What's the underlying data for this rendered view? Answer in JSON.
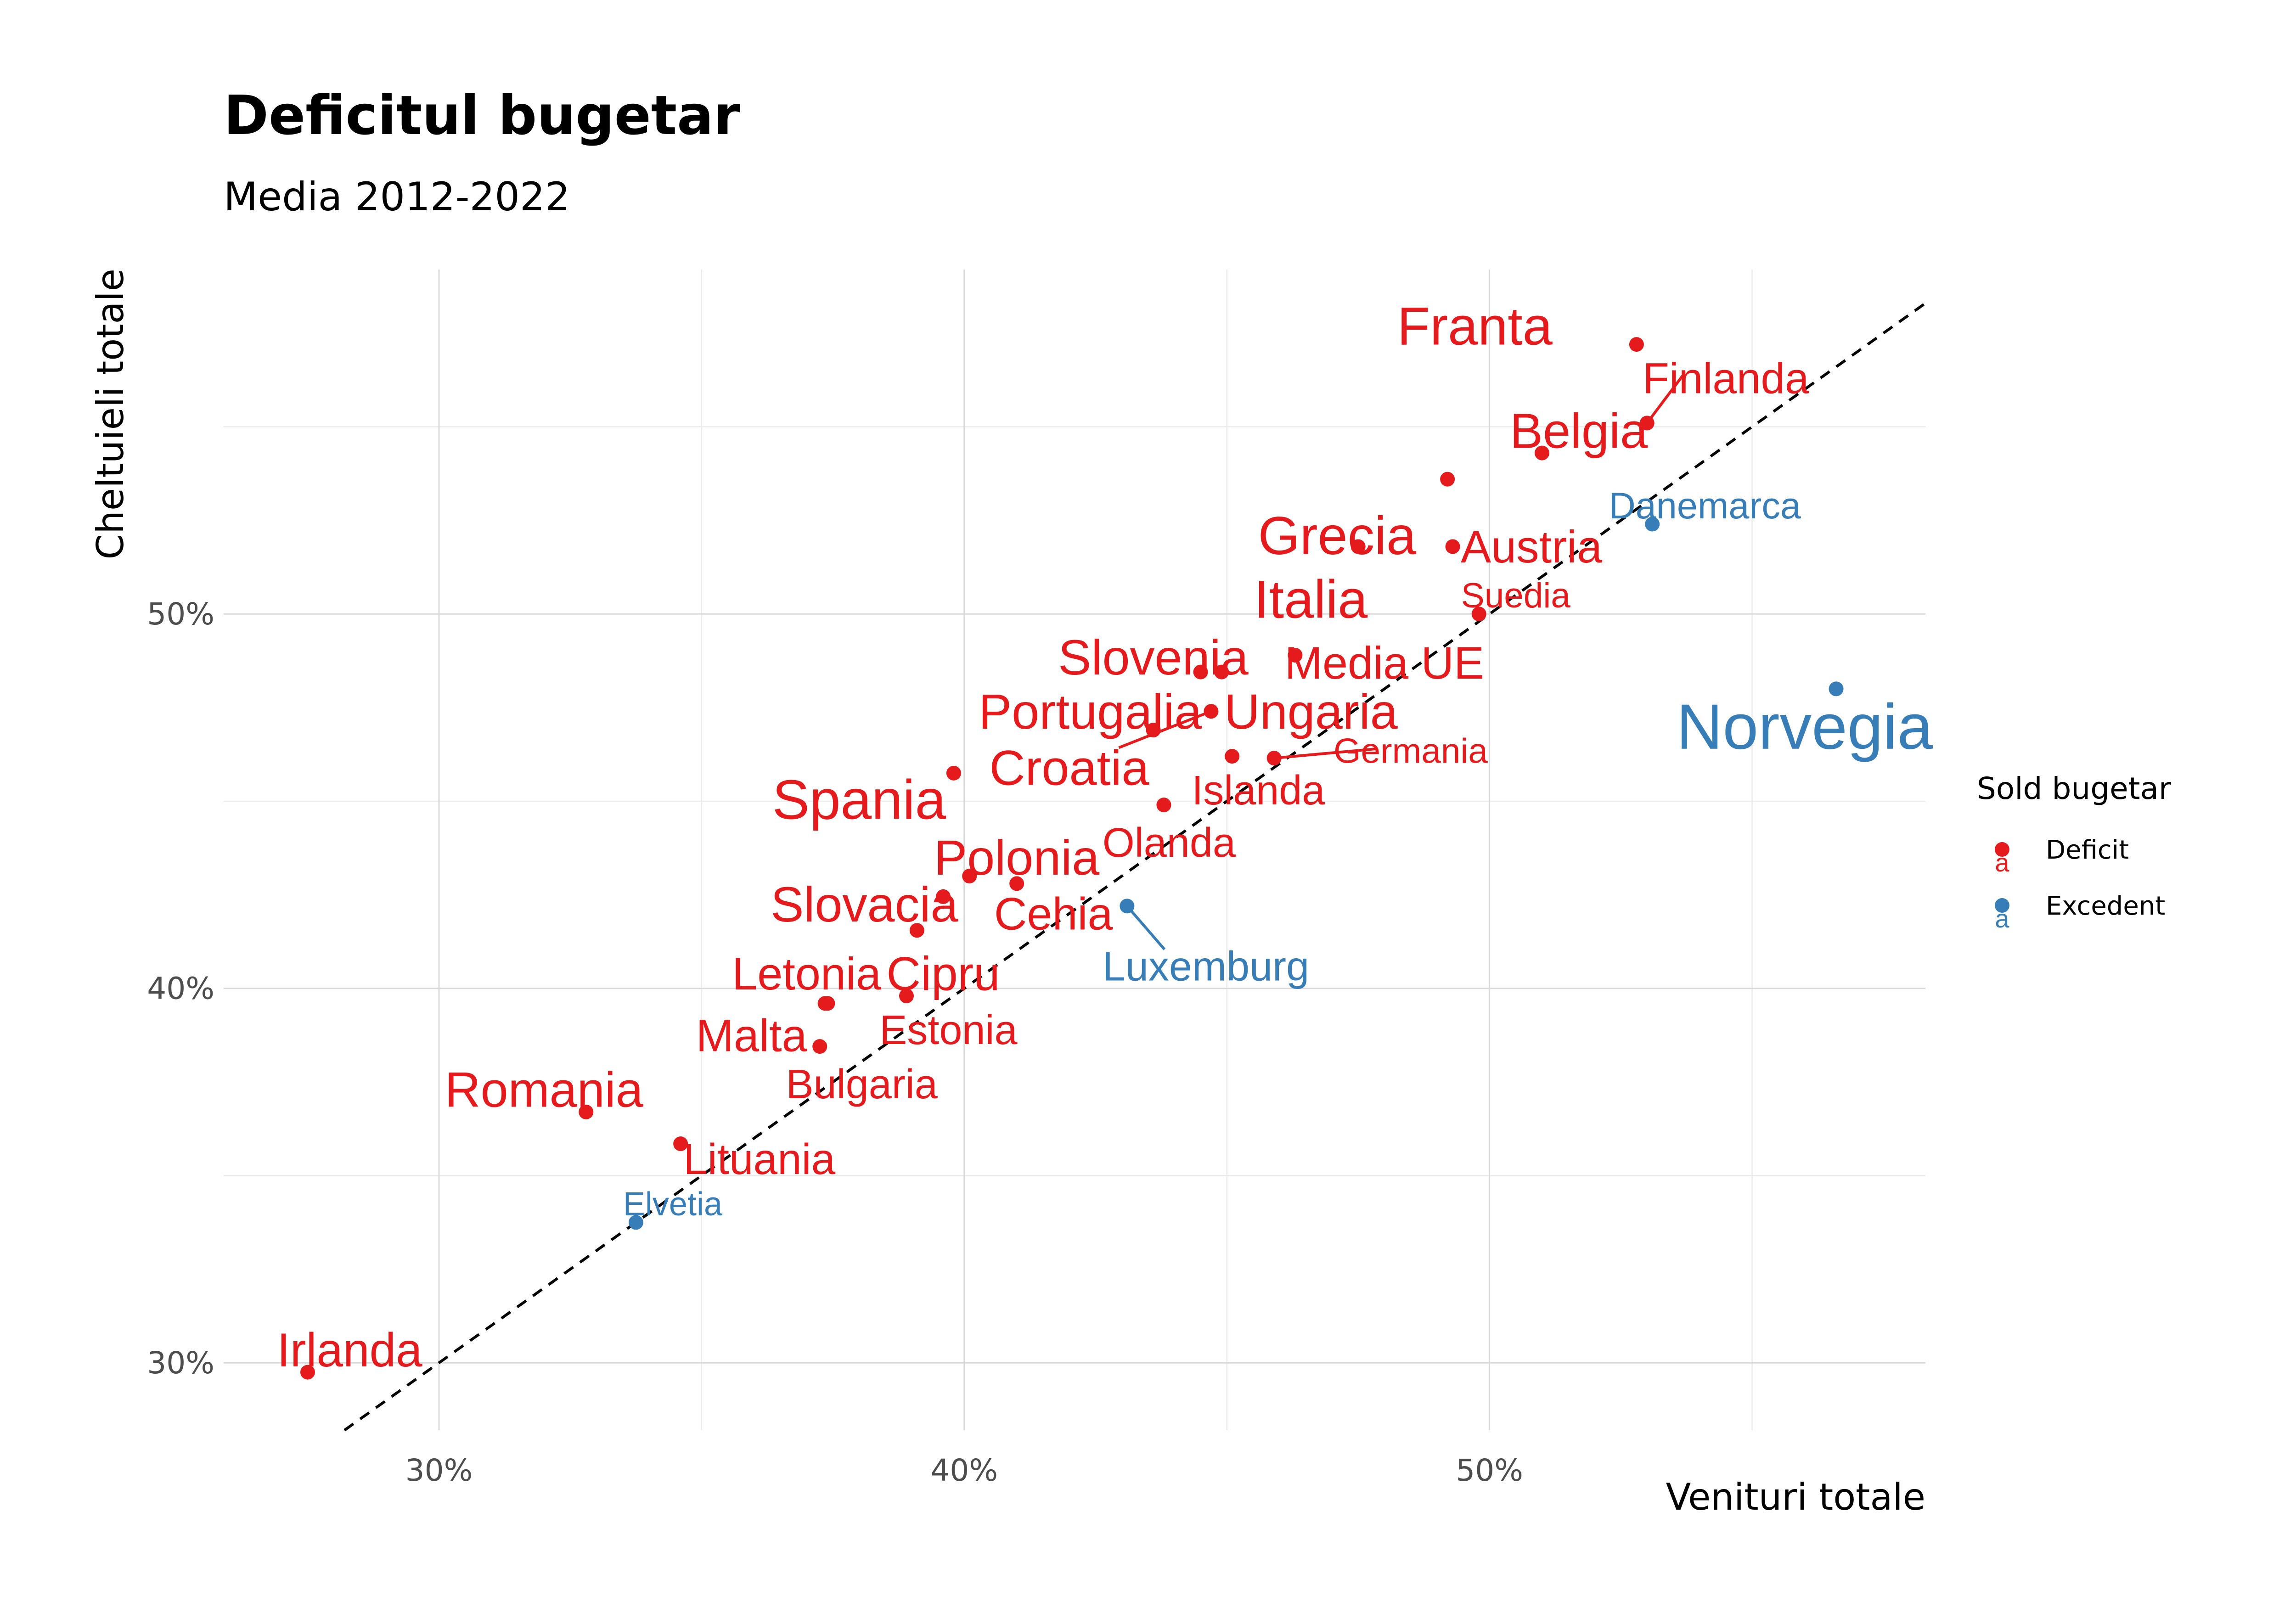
{
  "chart_data": {
    "type": "scatter",
    "title": "Deficitul bugetar",
    "subtitle": "Media 2012-2022",
    "xlabel": "Venituri totale",
    "ylabel": "Cheltuieli totale",
    "xlim": [
      0.259,
      0.583
    ],
    "ylim": [
      0.282,
      0.592
    ],
    "x_ticks": [
      0.3,
      0.4,
      0.5
    ],
    "x_tick_labels": [
      "30%",
      "40%",
      "50%"
    ],
    "y_ticks": [
      0.3,
      0.4,
      0.5
    ],
    "y_tick_labels": [
      "30%",
      "40%",
      "50%"
    ],
    "grid": true,
    "reference_line": {
      "type": "y=x",
      "style": "dashed",
      "color": "#000000"
    },
    "legend": {
      "title": "Sold bugetar",
      "placement": "right",
      "key_glyph": "a",
      "entries": [
        {
          "name": "Deficit",
          "color": "#E41A1C"
        },
        {
          "name": "Excedent",
          "color": "#377EB8"
        }
      ]
    },
    "points": [
      {
        "label": "Franta",
        "x": 0.528,
        "y": 0.572,
        "group": "Deficit",
        "size": 1.3,
        "ldx": -0.016,
        "ldy": 0.005,
        "anchor": "end"
      },
      {
        "label": "Finlanda",
        "x": 0.53,
        "y": 0.551,
        "group": "Deficit",
        "size": 1.05,
        "ldx": 0.015,
        "ldy": 0.012,
        "anchor": "middle",
        "leader": true
      },
      {
        "label": "Belgia",
        "x": 0.51,
        "y": 0.543,
        "group": "Deficit",
        "size": 1.2,
        "ldx": 0.007,
        "ldy": 0.006,
        "anchor": "middle"
      },
      {
        "label": "Danemarca",
        "x": 0.531,
        "y": 0.524,
        "group": "Excedent",
        "size": 0.9,
        "ldx": 0.01,
        "ldy": 0.005,
        "anchor": "middle"
      },
      {
        "label": "Grecia",
        "x": 0.475,
        "y": 0.518,
        "group": "Deficit",
        "size": 1.3,
        "ldx": -0.004,
        "ldy": 0.003,
        "anchor": "middle"
      },
      {
        "label": "",
        "x": 0.492,
        "y": 0.536,
        "group": "Deficit"
      },
      {
        "label": "Austria",
        "x": 0.493,
        "y": 0.518,
        "group": "Deficit",
        "size": 1.1,
        "ldx": 0.015,
        "ldy": 0.0,
        "anchor": "middle"
      },
      {
        "label": "Italia",
        "x": 0.475,
        "y": 0.518,
        "group": "Deficit",
        "size": 1.3,
        "ldx": -0.009,
        "ldy": -0.014,
        "anchor": "middle",
        "no_point": true
      },
      {
        "label": "Suedia",
        "x": 0.498,
        "y": 0.5,
        "group": "Deficit",
        "size": 0.85,
        "ldx": 0.007,
        "ldy": 0.005,
        "anchor": "middle"
      },
      {
        "label": "Media UE",
        "x": 0.463,
        "y": 0.489,
        "group": "Deficit",
        "size": 1.1,
        "ldx": 0.017,
        "ldy": -0.002,
        "anchor": "middle"
      },
      {
        "label": "Slovenia",
        "x": 0.445,
        "y": 0.4845,
        "group": "Deficit",
        "size": 1.2,
        "ldx": -0.009,
        "ldy": 0.004,
        "anchor": "middle"
      },
      {
        "label": "",
        "x": 0.449,
        "y": 0.4845,
        "group": "Deficit"
      },
      {
        "label": "Ungaria",
        "x": 0.447,
        "y": 0.474,
        "group": "Deficit",
        "size": 1.2,
        "ldx": 0.019,
        "ldy": 0.0,
        "anchor": "middle"
      },
      {
        "label": "Portugalia",
        "x": 0.436,
        "y": 0.469,
        "group": "Deficit",
        "size": 1.2,
        "ldx": -0.012,
        "ldy": 0.005,
        "anchor": "middle"
      },
      {
        "label": "Croatia",
        "x": 0.447,
        "y": 0.474,
        "group": "Deficit",
        "size": 1.2,
        "ldx": -0.027,
        "ldy": -0.015,
        "anchor": "middle",
        "leader": true,
        "no_point": true
      },
      {
        "label": "Germania",
        "x": 0.459,
        "y": 0.4615,
        "group": "Deficit",
        "size": 0.85,
        "ldx": 0.026,
        "ldy": 0.002,
        "anchor": "middle",
        "leader": true
      },
      {
        "label": "",
        "x": 0.451,
        "y": 0.462,
        "group": "Deficit"
      },
      {
        "label": "Islanda",
        "x": 0.451,
        "y": 0.462,
        "group": "Deficit",
        "size": 1.0,
        "ldx": 0.005,
        "ldy": -0.009,
        "anchor": "middle",
        "no_point": true
      },
      {
        "label": "Spania",
        "x": 0.398,
        "y": 0.4575,
        "group": "Deficit",
        "size": 1.35,
        "ldx": -0.018,
        "ldy": -0.007,
        "anchor": "middle"
      },
      {
        "label": "Olanda",
        "x": 0.438,
        "y": 0.449,
        "group": "Deficit",
        "size": 1.0,
        "ldx": 0.001,
        "ldy": -0.01,
        "anchor": "middle"
      },
      {
        "label": "Polonia",
        "x": 0.401,
        "y": 0.43,
        "group": "Deficit",
        "size": 1.2,
        "ldx": 0.009,
        "ldy": 0.005,
        "anchor": "middle"
      },
      {
        "label": "",
        "x": 0.41,
        "y": 0.428,
        "group": "Deficit"
      },
      {
        "label": "Slovacia",
        "x": 0.396,
        "y": 0.4245,
        "group": "Deficit",
        "size": 1.2,
        "ldx": -0.015,
        "ldy": -0.002,
        "anchor": "middle"
      },
      {
        "label": "Cehia",
        "x": 0.41,
        "y": 0.428,
        "group": "Deficit",
        "size": 1.1,
        "ldx": 0.007,
        "ldy": -0.008,
        "anchor": "middle",
        "no_point": true
      },
      {
        "label": "",
        "x": 0.391,
        "y": 0.4155,
        "group": "Deficit"
      },
      {
        "label": "Luxemburg",
        "x": 0.431,
        "y": 0.422,
        "group": "Excedent",
        "size": 1.0,
        "ldx": 0.015,
        "ldy": -0.016,
        "anchor": "middle",
        "leader": true
      },
      {
        "label": "Letonia",
        "x": 0.374,
        "y": 0.396,
        "group": "Deficit",
        "size": 1.1,
        "ldx": -0.004,
        "ldy": 0.008,
        "anchor": "middle"
      },
      {
        "label": "",
        "x": 0.3735,
        "y": 0.396,
        "group": "Deficit"
      },
      {
        "label": "Cipru",
        "x": 0.389,
        "y": 0.398,
        "group": "Deficit",
        "size": 1.15,
        "ldx": 0.007,
        "ldy": 0.006,
        "anchor": "middle"
      },
      {
        "label": "Estonia",
        "x": 0.389,
        "y": 0.398,
        "group": "Deficit",
        "size": 1.0,
        "ldx": 0.008,
        "ldy": -0.009,
        "anchor": "middle",
        "no_point": true
      },
      {
        "label": "Malta",
        "x": 0.3725,
        "y": 0.3845,
        "group": "Deficit",
        "size": 1.1,
        "ldx": -0.013,
        "ldy": 0.003,
        "anchor": "middle"
      },
      {
        "label": "Bulgaria",
        "x": 0.3725,
        "y": 0.3845,
        "group": "Deficit",
        "size": 1.0,
        "ldx": 0.008,
        "ldy": -0.01,
        "anchor": "middle",
        "no_point": true
      },
      {
        "label": "Romania",
        "x": 0.328,
        "y": 0.367,
        "group": "Deficit",
        "size": 1.2,
        "ldx": -0.008,
        "ldy": 0.006,
        "anchor": "middle"
      },
      {
        "label": "Lituania",
        "x": 0.346,
        "y": 0.3585,
        "group": "Deficit",
        "size": 1.05,
        "ldx": 0.015,
        "ldy": -0.004,
        "anchor": "middle"
      },
      {
        "label": "Elvetia",
        "x": 0.3375,
        "y": 0.3375,
        "group": "Excedent",
        "size": 0.8,
        "ldx": 0.007,
        "ldy": 0.005,
        "anchor": "middle"
      },
      {
        "label": "Irlanda",
        "x": 0.275,
        "y": 0.2975,
        "group": "Deficit",
        "size": 1.15,
        "ldx": 0.008,
        "ldy": 0.006,
        "anchor": "middle"
      },
      {
        "label": "Norvegia",
        "x": 0.566,
        "y": 0.48,
        "group": "Excedent",
        "size": 1.55,
        "ldx": -0.006,
        "ldy": -0.01,
        "anchor": "middle"
      }
    ]
  }
}
